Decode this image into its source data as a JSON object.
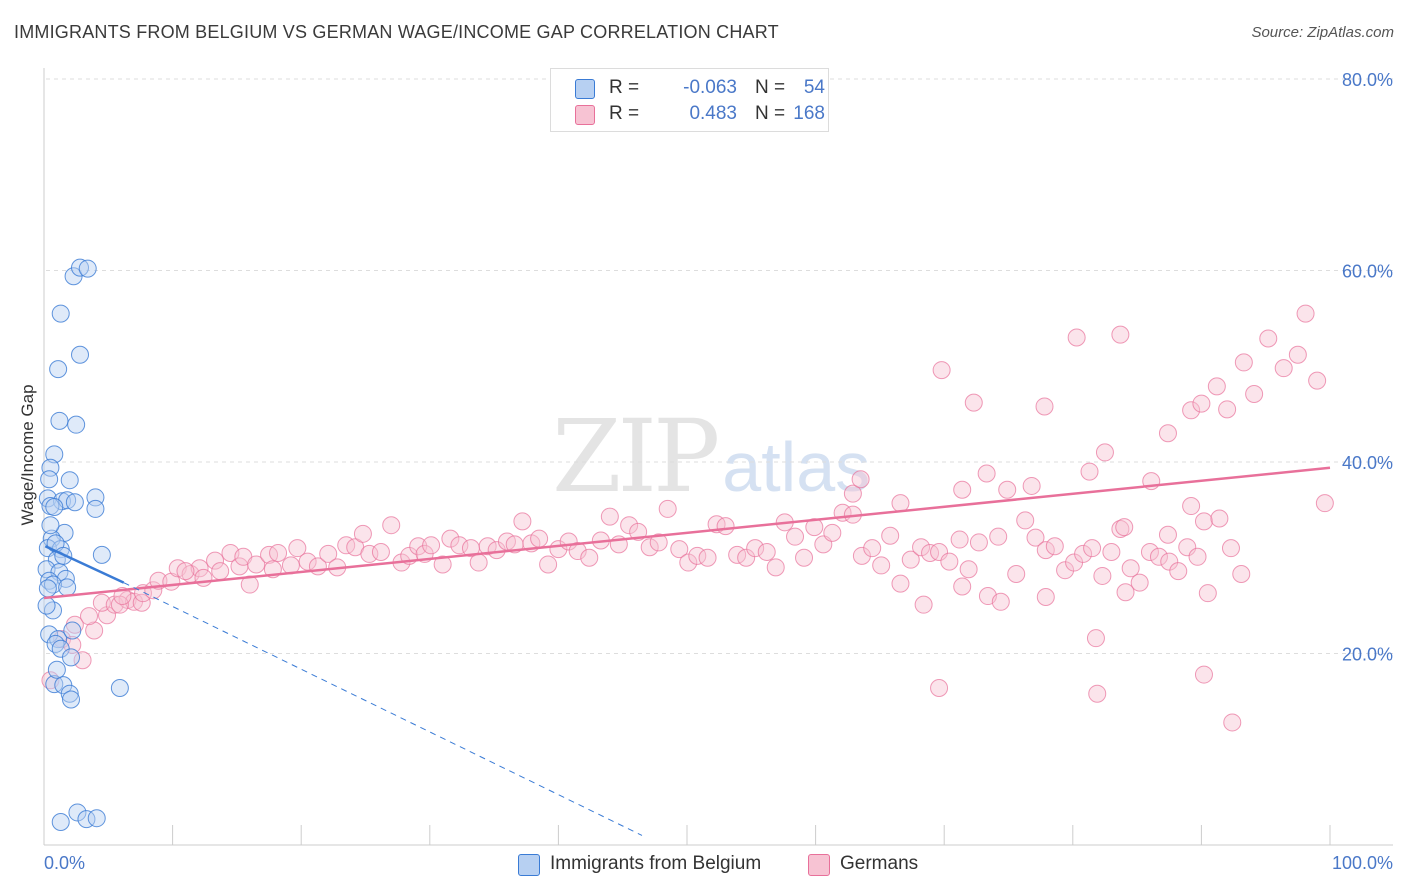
{
  "title": "IMMIGRANTS FROM BELGIUM VS GERMAN WAGE/INCOME GAP CORRELATION CHART",
  "source": "Source: ZipAtlas.com",
  "watermark": {
    "zip": "ZIP",
    "atlas": "atlas"
  },
  "colors": {
    "blue": "#3a7bd5",
    "blue_fill": "#b7d0f2",
    "pink": "#e8709a",
    "pink_fill": "#f7c3d3",
    "tick_text": "#4a78c8",
    "grid": "#dddddd"
  },
  "legend": {
    "rows": [
      {
        "r_label": "R =",
        "r_value": "-0.063",
        "n_label": "N =",
        "n_value": "54"
      },
      {
        "r_label": "R =",
        "r_value": "0.483",
        "n_label": "N =",
        "n_value": "168"
      }
    ]
  },
  "bottom_legend": {
    "belgium": "Immigrants from Belgium",
    "germans": "Germans"
  },
  "chart_data": {
    "type": "scatter",
    "title": "IMMIGRANTS FROM BELGIUM VS GERMAN WAGE/INCOME GAP CORRELATION CHART",
    "xlabel": "",
    "ylabel": "Wage/Income Gap",
    "xlim": [
      0,
      100
    ],
    "ylim": [
      0,
      80
    ],
    "x_tick_labels": [
      "0.0%",
      "100.0%"
    ],
    "y_ticks": [
      20,
      40,
      60,
      80
    ],
    "y_tick_labels": [
      "20.0%",
      "40.0%",
      "60.0%",
      "80.0%"
    ],
    "grid": "horizontal dashed",
    "legend_position": "top-center",
    "series": [
      {
        "name": "Immigrants from Belgium",
        "color": "#3a7bd5",
        "r": -0.063,
        "n": 54,
        "trend_solid": [
          [
            0.1,
            31.2
          ],
          [
            6.2,
            27.4
          ]
        ],
        "trend_dashed": [
          [
            6.2,
            27.4
          ],
          [
            46.5,
            1.0
          ]
        ],
        "points": [
          [
            2.3,
            59.4
          ],
          [
            2.8,
            60.3
          ],
          [
            3.4,
            60.2
          ],
          [
            1.3,
            55.5
          ],
          [
            2.8,
            51.2
          ],
          [
            1.1,
            49.7
          ],
          [
            1.2,
            44.3
          ],
          [
            2.5,
            43.9
          ],
          [
            0.8,
            40.8
          ],
          [
            0.5,
            39.4
          ],
          [
            0.4,
            38.2
          ],
          [
            2.0,
            38.1
          ],
          [
            0.3,
            36.2
          ],
          [
            1.4,
            35.9
          ],
          [
            1.8,
            36.0
          ],
          [
            2.4,
            35.8
          ],
          [
            4.0,
            36.3
          ],
          [
            0.5,
            35.4
          ],
          [
            0.8,
            35.3
          ],
          [
            4.0,
            35.1
          ],
          [
            1.6,
            32.6
          ],
          [
            0.6,
            32.0
          ],
          [
            0.3,
            31.0
          ],
          [
            1.3,
            30.9
          ],
          [
            4.5,
            30.3
          ],
          [
            1.0,
            29.8
          ],
          [
            0.2,
            28.8
          ],
          [
            1.2,
            28.5
          ],
          [
            0.4,
            27.6
          ],
          [
            1.7,
            27.8
          ],
          [
            0.7,
            27.2
          ],
          [
            0.3,
            26.8
          ],
          [
            1.8,
            26.9
          ],
          [
            0.7,
            24.5
          ],
          [
            0.4,
            22.0
          ],
          [
            1.1,
            21.5
          ],
          [
            0.9,
            21.0
          ],
          [
            1.3,
            20.5
          ],
          [
            2.1,
            19.6
          ],
          [
            0.8,
            16.8
          ],
          [
            1.5,
            16.7
          ],
          [
            2.0,
            15.8
          ],
          [
            2.1,
            15.2
          ],
          [
            5.9,
            16.4
          ],
          [
            1.3,
            2.4
          ],
          [
            2.6,
            3.4
          ],
          [
            3.3,
            2.7
          ],
          [
            4.1,
            2.8
          ],
          [
            0.5,
            33.4
          ],
          [
            0.9,
            31.5
          ],
          [
            1.5,
            30.2
          ],
          [
            0.2,
            25.0
          ],
          [
            2.2,
            22.4
          ],
          [
            1.0,
            18.3
          ]
        ]
      },
      {
        "name": "Germans",
        "color": "#e8709a",
        "r": 0.483,
        "n": 168,
        "trend_solid": [
          [
            0.0,
            25.8
          ],
          [
            100.0,
            39.4
          ]
        ],
        "points": [
          [
            0.5,
            17.2
          ],
          [
            1.4,
            21.5
          ],
          [
            2.2,
            20.9
          ],
          [
            3.0,
            19.3
          ],
          [
            2.4,
            23.0
          ],
          [
            3.9,
            22.4
          ],
          [
            3.5,
            23.9
          ],
          [
            4.9,
            24.0
          ],
          [
            4.5,
            25.3
          ],
          [
            5.5,
            25.1
          ],
          [
            6.5,
            25.6
          ],
          [
            7.0,
            25.4
          ],
          [
            5.9,
            25.1
          ],
          [
            7.6,
            25.3
          ],
          [
            6.1,
            26.0
          ],
          [
            7.7,
            26.3
          ],
          [
            8.5,
            26.6
          ],
          [
            8.9,
            27.6
          ],
          [
            9.9,
            27.5
          ],
          [
            10.4,
            28.9
          ],
          [
            11.4,
            28.3
          ],
          [
            12.1,
            28.9
          ],
          [
            12.4,
            27.9
          ],
          [
            11.0,
            28.6
          ],
          [
            13.3,
            29.7
          ],
          [
            13.7,
            28.6
          ],
          [
            14.5,
            30.5
          ],
          [
            15.2,
            29.1
          ],
          [
            15.5,
            30.1
          ],
          [
            16.5,
            29.3
          ],
          [
            16.0,
            27.2
          ],
          [
            17.5,
            30.3
          ],
          [
            18.2,
            30.5
          ],
          [
            17.8,
            28.8
          ],
          [
            19.2,
            29.2
          ],
          [
            19.7,
            31.0
          ],
          [
            20.5,
            29.6
          ],
          [
            21.3,
            29.1
          ],
          [
            22.1,
            30.4
          ],
          [
            22.8,
            29.0
          ],
          [
            23.5,
            31.3
          ],
          [
            24.2,
            31.1
          ],
          [
            24.8,
            32.5
          ],
          [
            25.3,
            30.4
          ],
          [
            26.2,
            30.6
          ],
          [
            27.0,
            33.4
          ],
          [
            27.8,
            29.5
          ],
          [
            28.4,
            30.2
          ],
          [
            29.1,
            31.2
          ],
          [
            29.6,
            30.4
          ],
          [
            30.1,
            31.3
          ],
          [
            31.0,
            29.3
          ],
          [
            31.6,
            32.0
          ],
          [
            32.3,
            31.3
          ],
          [
            33.2,
            31.0
          ],
          [
            33.8,
            29.5
          ],
          [
            34.5,
            31.2
          ],
          [
            35.2,
            30.8
          ],
          [
            36.0,
            31.7
          ],
          [
            36.6,
            31.4
          ],
          [
            37.2,
            33.8
          ],
          [
            37.9,
            31.5
          ],
          [
            38.5,
            32.0
          ],
          [
            39.2,
            29.3
          ],
          [
            40.0,
            30.9
          ],
          [
            40.8,
            31.7
          ],
          [
            41.5,
            30.7
          ],
          [
            42.4,
            30.0
          ],
          [
            43.3,
            31.8
          ],
          [
            44.0,
            34.3
          ],
          [
            44.7,
            31.4
          ],
          [
            45.5,
            33.4
          ],
          [
            46.2,
            32.7
          ],
          [
            47.1,
            31.1
          ],
          [
            47.8,
            31.6
          ],
          [
            48.5,
            35.1
          ],
          [
            49.4,
            30.9
          ],
          [
            50.1,
            29.5
          ],
          [
            50.8,
            30.2
          ],
          [
            51.6,
            30.0
          ],
          [
            52.3,
            33.5
          ],
          [
            53.0,
            33.3
          ],
          [
            53.9,
            30.3
          ],
          [
            54.6,
            30.0
          ],
          [
            55.3,
            31.0
          ],
          [
            56.2,
            30.6
          ],
          [
            56.9,
            29.0
          ],
          [
            57.6,
            33.7
          ],
          [
            58.4,
            32.2
          ],
          [
            59.1,
            30.0
          ],
          [
            59.9,
            33.2
          ],
          [
            60.6,
            31.4
          ],
          [
            61.3,
            32.6
          ],
          [
            62.1,
            34.7
          ],
          [
            62.9,
            34.5
          ],
          [
            63.6,
            30.2
          ],
          [
            64.4,
            31.0
          ],
          [
            65.1,
            29.2
          ],
          [
            65.8,
            32.3
          ],
          [
            66.6,
            35.7
          ],
          [
            67.4,
            29.8
          ],
          [
            68.2,
            31.1
          ],
          [
            68.9,
            30.5
          ],
          [
            69.6,
            30.6
          ],
          [
            70.4,
            29.6
          ],
          [
            71.2,
            31.9
          ],
          [
            71.9,
            28.8
          ],
          [
            72.7,
            31.6
          ],
          [
            73.4,
            26.0
          ],
          [
            74.2,
            32.2
          ],
          [
            74.9,
            37.1
          ],
          [
            75.6,
            28.3
          ],
          [
            76.3,
            33.9
          ],
          [
            77.1,
            32.1
          ],
          [
            77.9,
            30.8
          ],
          [
            78.6,
            31.2
          ],
          [
            79.4,
            28.7
          ],
          [
            80.1,
            29.5
          ],
          [
            80.8,
            30.4
          ],
          [
            81.5,
            31.0
          ],
          [
            82.3,
            28.1
          ],
          [
            83.0,
            30.6
          ],
          [
            83.7,
            33.0
          ],
          [
            84.5,
            28.9
          ],
          [
            85.2,
            27.4
          ],
          [
            86.0,
            30.6
          ],
          [
            86.7,
            30.1
          ],
          [
            87.5,
            29.6
          ],
          [
            88.2,
            28.6
          ],
          [
            88.9,
            31.1
          ],
          [
            89.7,
            30.1
          ],
          [
            90.5,
            26.3
          ],
          [
            66.6,
            27.3
          ],
          [
            68.4,
            25.1
          ],
          [
            71.4,
            27.0
          ],
          [
            74.4,
            25.4
          ],
          [
            77.9,
            25.9
          ],
          [
            84.1,
            26.4
          ],
          [
            87.4,
            32.4
          ],
          [
            89.2,
            35.4
          ],
          [
            90.2,
            33.8
          ],
          [
            91.4,
            34.1
          ],
          [
            92.3,
            31.0
          ],
          [
            93.1,
            28.3
          ],
          [
            62.9,
            36.7
          ],
          [
            71.4,
            37.1
          ],
          [
            73.3,
            38.8
          ],
          [
            81.3,
            39.0
          ],
          [
            84.0,
            33.2
          ],
          [
            86.1,
            38.0
          ],
          [
            87.4,
            43.0
          ],
          [
            89.2,
            45.4
          ],
          [
            90.0,
            46.1
          ],
          [
            91.2,
            47.9
          ],
          [
            92.0,
            45.5
          ],
          [
            93.3,
            50.4
          ],
          [
            94.1,
            47.1
          ],
          [
            95.2,
            52.9
          ],
          [
            96.4,
            49.8
          ],
          [
            97.5,
            51.2
          ],
          [
            98.1,
            55.5
          ],
          [
            99.0,
            48.5
          ],
          [
            69.8,
            49.6
          ],
          [
            72.3,
            46.2
          ],
          [
            77.8,
            45.8
          ],
          [
            80.3,
            53.0
          ],
          [
            82.5,
            41.0
          ],
          [
            83.7,
            53.3
          ],
          [
            63.5,
            38.2
          ],
          [
            69.6,
            16.4
          ],
          [
            81.9,
            15.8
          ],
          [
            81.8,
            21.6
          ],
          [
            90.2,
            17.8
          ],
          [
            92.4,
            12.8
          ],
          [
            99.6,
            35.7
          ],
          [
            76.8,
            37.5
          ]
        ]
      }
    ]
  }
}
